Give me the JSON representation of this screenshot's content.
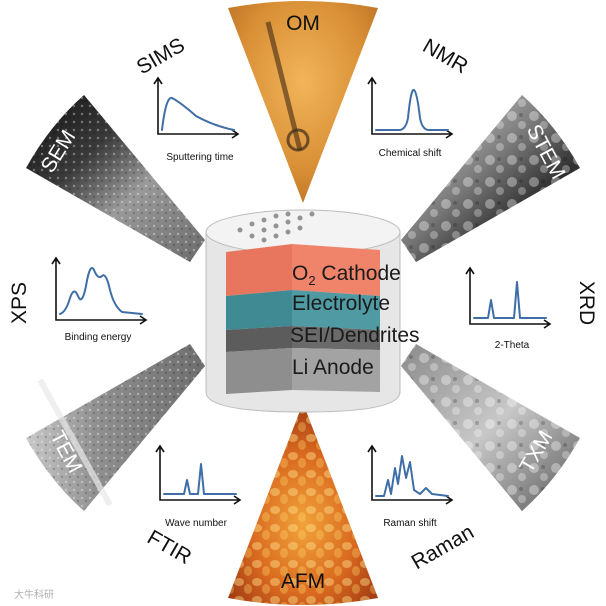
{
  "center": {
    "layers": [
      {
        "label_main": "O",
        "label_sub": "2",
        "label_rest": " Cathode",
        "color": "#e8765e"
      },
      {
        "label": "Electrolyte",
        "color": "#3f8a93"
      },
      {
        "label": "SEI/Dendrites",
        "color": "#5c5c5c"
      },
      {
        "label": "Li Anode",
        "color": "#8e8e8e"
      }
    ]
  },
  "techniques": {
    "om": "OM",
    "nmr": "NMR",
    "stem": "STEM",
    "xrd": "XRD",
    "txm": "TXM",
    "raman": "Raman",
    "afm": "AFM",
    "ftir": "FTIR",
    "tem": "TEM",
    "xps": "XPS",
    "sem": "SEM",
    "sims": "SIMS"
  },
  "plots": {
    "sims": {
      "xlabel": "Sputtering time",
      "shape": "decay"
    },
    "nmr": {
      "xlabel": "Chemical shift",
      "shape": "single-peak"
    },
    "xrd": {
      "xlabel": "2-Theta",
      "shape": "sharp-peaks"
    },
    "raman": {
      "xlabel": "Raman shift",
      "shape": "multi-peak"
    },
    "ftir": {
      "xlabel": "Wave number",
      "shape": "double-peak"
    },
    "xps": {
      "xlabel": "Binding energy",
      "shape": "broad-peaks"
    }
  },
  "colors": {
    "trace": "#3f6fa6",
    "om": "#d9963a",
    "afm": "#d9691f",
    "micrograph_dark": "#2a2a2a",
    "micrograph_light": "#bdbdbd"
  },
  "watermark": "大牛科研"
}
